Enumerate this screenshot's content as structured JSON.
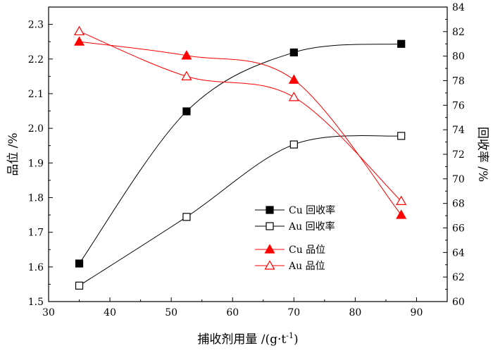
{
  "chart_data": {
    "type": "line",
    "title": "",
    "xlabel": "捕收剂用量 /(g·t",
    "xlabel_sup": "-1",
    "xlabel_close": ")",
    "ylabel_left": "品位 /%",
    "ylabel_right": "回收率 /%",
    "x": [
      35,
      52.5,
      70,
      87.5
    ],
    "xlim": [
      30,
      95
    ],
    "xticks": [
      30,
      40,
      50,
      60,
      70,
      80,
      90
    ],
    "ylim_left": [
      1.5,
      2.35
    ],
    "yticks_left": [
      "1.5",
      "1.6",
      "1.7",
      "1.8",
      "1.9",
      "2.0",
      "2.1",
      "2.2",
      "2.3"
    ],
    "ylim_right": [
      60,
      84
    ],
    "yticks_right": [
      "60",
      "62",
      "64",
      "66",
      "68",
      "70",
      "72",
      "74",
      "76",
      "78",
      "80",
      "82",
      "84"
    ],
    "grid": false,
    "legend_position": "center-right",
    "series": [
      {
        "name": "Cu回收率",
        "legend_label": "Cu 回收率",
        "axis": "right",
        "values": [
          63.1,
          75.5,
          80.3,
          81.0
        ],
        "color": "#000000",
        "marker": "square-filled"
      },
      {
        "name": "Au回收率",
        "legend_label": "Au 回收率",
        "axis": "right",
        "values": [
          61.3,
          66.9,
          72.8,
          73.5
        ],
        "color": "#000000",
        "marker": "square-open"
      },
      {
        "name": "Cu品位",
        "legend_label": "Cu 品位",
        "axis": "left",
        "values": [
          2.25,
          2.21,
          2.14,
          1.75
        ],
        "color": "#ff0000",
        "marker": "triangle-filled"
      },
      {
        "name": "Au品位",
        "legend_label": "Au 品位",
        "axis": "left",
        "values": [
          2.28,
          2.15,
          2.09,
          1.79
        ],
        "color": "#ff0000",
        "marker": "triangle-open"
      }
    ]
  }
}
